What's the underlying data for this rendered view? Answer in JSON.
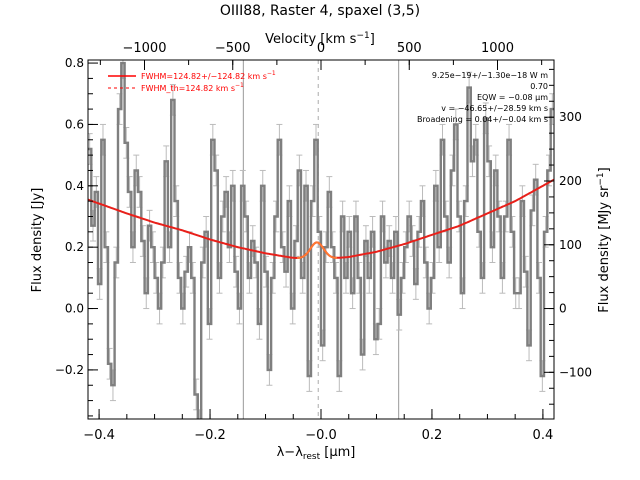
{
  "chart_data": {
    "type": "line",
    "title": "OIII88, Raster 4, spaxel (3,5)",
    "xlabel": "λ−λ",
    "xlabel_sub": "rest",
    "xlabel_unit": " [μm]",
    "ylabel": "Flux density [Jy]",
    "top_axis_label": "Velocity [km s",
    "top_axis_label_sup": "−1",
    "top_axis_label_end": "]",
    "right_axis_label": "Flux density [MJy sr",
    "right_axis_label_sup": "−1",
    "right_axis_label_end": "]",
    "xlim": [
      -0.42,
      0.42
    ],
    "ylim": [
      -0.36,
      0.81
    ],
    "right_ylim": [
      -173.2,
      389.7
    ],
    "top_xlim": [
      -1320,
      1320
    ],
    "x_ticks": [
      -0.4,
      -0.2,
      0.0,
      0.2,
      0.4
    ],
    "x_tick_labels": [
      "−0.4",
      "−0.2",
      "−0.0",
      "0.2",
      "0.4"
    ],
    "y_ticks": [
      -0.2,
      0.0,
      0.2,
      0.4,
      0.6,
      0.8
    ],
    "y_tick_labels": [
      "−0.2",
      "0.0",
      "0.2",
      "0.4",
      "0.6",
      "0.8"
    ],
    "right_ticks": [
      -100,
      0,
      100,
      200,
      300
    ],
    "right_tick_labels": [
      "−100",
      "0",
      "100",
      "200",
      "300"
    ],
    "top_ticks": [
      -1000,
      -500,
      0,
      500,
      1000
    ],
    "top_tick_labels": [
      "−1000",
      "−500",
      "0",
      "500",
      "1000"
    ],
    "vertical_lines_x": [
      -0.14,
      0.14
    ],
    "rest_line_x": -0.005,
    "legend": [
      {
        "text": "FWHM=124.82+/−124.82 km s",
        "sup": "−1",
        "style": "solid",
        "color": "#ff0000"
      },
      {
        "text": "FWHM_th=124.82 km s",
        "sup": "−1",
        "style": "dashed",
        "color": "#ff0000"
      }
    ],
    "annotations": [
      "9.25e−19+/−1.30e−18 W m",
      "0.70",
      "EQW = −0.08 μm",
      "v = −46.65+/−28.59 km s",
      "Broadening = 0.04+/−0.04 km s"
    ],
    "colors": {
      "data": "#7f7f7f",
      "fit": "#e8201a",
      "line_fit": "#ff7a30",
      "errorbar": "#bbbbbb",
      "rest_line": "#aaaaaa"
    },
    "fit_curve": {
      "x": [
        -0.42,
        -0.35,
        -0.3,
        -0.25,
        -0.2,
        -0.15,
        -0.1,
        -0.05,
        0.0,
        0.05,
        0.1,
        0.15,
        0.2,
        0.25,
        0.3,
        0.35,
        0.42
      ],
      "y": [
        0.355,
        0.31,
        0.28,
        0.255,
        0.225,
        0.2,
        0.18,
        0.165,
        0.16,
        0.168,
        0.185,
        0.21,
        0.24,
        0.27,
        0.31,
        0.35,
        0.42
      ]
    },
    "line_component": {
      "center": -0.007,
      "amplitude": 0.055,
      "sigma": 0.012
    },
    "series": [
      {
        "x": [
          -0.417,
          -0.411,
          -0.405,
          -0.399,
          -0.393,
          -0.387,
          -0.381,
          -0.375,
          -0.369,
          -0.363,
          -0.357,
          -0.351,
          -0.345,
          -0.339,
          -0.333,
          -0.327,
          -0.321,
          -0.315,
          -0.309,
          -0.303,
          -0.297,
          -0.291,
          -0.285,
          -0.279,
          -0.273,
          -0.267,
          -0.261,
          -0.255,
          -0.249,
          -0.243,
          -0.237,
          -0.231,
          -0.225,
          -0.219,
          -0.213,
          -0.207,
          -0.201,
          -0.195,
          -0.189,
          -0.183,
          -0.177,
          -0.171,
          -0.165,
          -0.159,
          -0.153,
          -0.147,
          -0.141,
          -0.135,
          -0.129,
          -0.123,
          -0.117,
          -0.111,
          -0.105,
          -0.099,
          -0.093,
          -0.087,
          -0.081,
          -0.075,
          -0.069,
          -0.063,
          -0.057,
          -0.051,
          -0.045,
          -0.039,
          -0.033,
          -0.027,
          -0.021,
          -0.015,
          -0.009,
          -0.003,
          0.003,
          0.009,
          0.015,
          0.021,
          0.027,
          0.033,
          0.039,
          0.045,
          0.051,
          0.057,
          0.063,
          0.069,
          0.075,
          0.081,
          0.087,
          0.093,
          0.099,
          0.105,
          0.111,
          0.117,
          0.123,
          0.129,
          0.135,
          0.141,
          0.147,
          0.153,
          0.159,
          0.165,
          0.171,
          0.177,
          0.183,
          0.189,
          0.195,
          0.201,
          0.207,
          0.213,
          0.219,
          0.225,
          0.231,
          0.237,
          0.243,
          0.249,
          0.255,
          0.261,
          0.267,
          0.273,
          0.279,
          0.285,
          0.291,
          0.297,
          0.303,
          0.309,
          0.315,
          0.321,
          0.327,
          0.333,
          0.339,
          0.345,
          0.351,
          0.357,
          0.363,
          0.369,
          0.375,
          0.381,
          0.387,
          0.393,
          0.399,
          0.405,
          0.411,
          0.417
        ],
        "y": [
          0.52,
          0.27,
          0.38,
          0.08,
          0.55,
          0.2,
          -0.18,
          -0.25,
          0.15,
          0.65,
          0.8,
          0.54,
          0.38,
          0.2,
          0.45,
          0.38,
          0.22,
          0.05,
          0.27,
          0.2,
          0.1,
          0.0,
          0.15,
          0.48,
          0.2,
          0.68,
          0.35,
          0.1,
          0.0,
          0.12,
          0.2,
          0.1,
          -0.28,
          -0.38,
          0.15,
          0.25,
          -0.05,
          0.55,
          0.45,
          0.1,
          0.3,
          0.38,
          0.2,
          0.4,
          0.12,
          0.0,
          0.4,
          0.3,
          0.1,
          0.22,
          0.15,
          -0.05,
          0.4,
          0.12,
          -0.2,
          0.1,
          0.3,
          0.55,
          0.2,
          0.12,
          0.35,
          0.0,
          0.22,
          0.45,
          0.1,
          0.4,
          -0.22,
          0.35,
          0.55,
          0.25,
          -0.12,
          0.2,
          0.38,
          0.2,
          0.1,
          -0.22,
          0.3,
          0.1,
          0.25,
          0.05,
          0.3,
          0.1,
          -0.15,
          0.22,
          0.1,
          0.25,
          -0.1,
          -0.05,
          0.3,
          0.15,
          0.22,
          0.1,
          0.25,
          -0.02,
          0.1,
          0.2,
          0.3,
          0.22,
          0.08,
          0.25,
          0.35,
          0.15,
          0.0,
          0.1,
          0.4,
          0.2,
          0.55,
          0.3,
          0.15,
          0.45,
          0.6,
          0.3,
          0.05,
          0.35,
          0.72,
          0.48,
          0.55,
          0.25,
          0.1,
          0.62,
          0.48,
          0.2,
          0.45,
          0.3,
          0.1,
          0.3,
          0.55,
          0.25,
          0.05,
          0.05,
          0.35,
          0.12,
          -0.12,
          0.32,
          0.42,
          0.1,
          -0.22,
          0.25,
          0.45,
          0.65
        ],
        "err": 0.05
      }
    ]
  }
}
